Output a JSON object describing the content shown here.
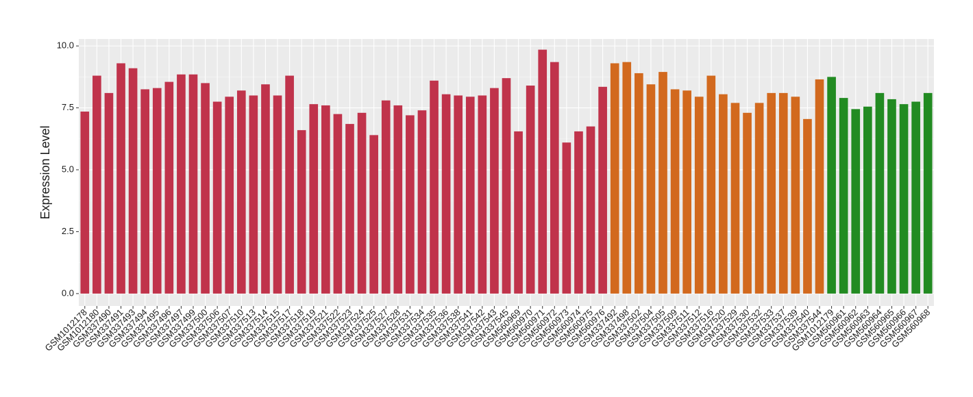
{
  "chart_data": {
    "type": "bar",
    "y_label": "Expression Level",
    "categories": [
      "GSM1012178",
      "GSM1012180",
      "GSM337490",
      "GSM337491",
      "GSM337493",
      "GSM337494",
      "GSM337495",
      "GSM337496",
      "GSM337497",
      "GSM337499",
      "GSM337500",
      "GSM337506",
      "GSM337507",
      "GSM337510",
      "GSM337513",
      "GSM337514",
      "GSM337515",
      "GSM337517",
      "GSM337518",
      "GSM337519",
      "GSM337521",
      "GSM337522",
      "GSM337523",
      "GSM337524",
      "GSM337525",
      "GSM337527",
      "GSM337528",
      "GSM337531",
      "GSM337534",
      "GSM337535",
      "GSM337536",
      "GSM337538",
      "GSM337541",
      "GSM337542",
      "GSM337543",
      "GSM337545",
      "GSM560969",
      "GSM560970",
      "GSM560971",
      "GSM560972",
      "GSM560973",
      "GSM560974",
      "GSM560975",
      "GSM560976",
      "GSM337492",
      "GSM337498",
      "GSM337502",
      "GSM337504",
      "GSM337505",
      "GSM337509",
      "GSM337511",
      "GSM337512",
      "GSM337516",
      "GSM337520",
      "GSM337529",
      "GSM337530",
      "GSM337532",
      "GSM337533",
      "GSM337537",
      "GSM337539",
      "GSM337540",
      "GSM337544",
      "GSM1012179",
      "GSM560961",
      "GSM560962",
      "GSM560963",
      "GSM560964",
      "GSM560965",
      "GSM560966",
      "GSM560967",
      "GSM560968"
    ],
    "values": [
      7.35,
      8.8,
      8.1,
      9.3,
      9.1,
      8.25,
      8.3,
      8.55,
      8.85,
      8.85,
      8.5,
      7.75,
      7.95,
      8.2,
      8.0,
      8.45,
      8.0,
      8.8,
      6.6,
      7.65,
      7.6,
      7.25,
      6.85,
      7.3,
      6.4,
      7.8,
      7.6,
      7.2,
      7.4,
      8.6,
      8.05,
      8.0,
      7.95,
      8.0,
      8.3,
      8.7,
      6.55,
      8.4,
      9.85,
      9.35,
      6.1,
      6.55,
      6.75,
      8.35,
      9.3,
      9.35,
      8.9,
      8.45,
      8.95,
      8.25,
      8.2,
      7.95,
      8.8,
      8.05,
      7.7,
      7.3,
      7.7,
      8.1,
      8.1,
      7.95,
      7.05,
      8.65,
      8.75,
      7.9,
      7.45,
      7.55,
      8.1,
      7.85,
      7.65,
      7.75,
      8.1
    ],
    "colors": [
      "#c0334b",
      "#c0334b",
      "#c0334b",
      "#c0334b",
      "#c0334b",
      "#c0334b",
      "#c0334b",
      "#c0334b",
      "#c0334b",
      "#c0334b",
      "#c0334b",
      "#c0334b",
      "#c0334b",
      "#c0334b",
      "#c0334b",
      "#c0334b",
      "#c0334b",
      "#c0334b",
      "#c0334b",
      "#c0334b",
      "#c0334b",
      "#c0334b",
      "#c0334b",
      "#c0334b",
      "#c0334b",
      "#c0334b",
      "#c0334b",
      "#c0334b",
      "#c0334b",
      "#c0334b",
      "#c0334b",
      "#c0334b",
      "#c0334b",
      "#c0334b",
      "#c0334b",
      "#c0334b",
      "#c0334b",
      "#c0334b",
      "#c0334b",
      "#c0334b",
      "#c0334b",
      "#c0334b",
      "#c0334b",
      "#c0334b",
      "#d2691e",
      "#d2691e",
      "#d2691e",
      "#d2691e",
      "#d2691e",
      "#d2691e",
      "#d2691e",
      "#d2691e",
      "#d2691e",
      "#d2691e",
      "#d2691e",
      "#d2691e",
      "#d2691e",
      "#d2691e",
      "#d2691e",
      "#d2691e",
      "#d2691e",
      "#d2691e",
      "#228b22",
      "#228b22",
      "#228b22",
      "#228b22",
      "#228b22",
      "#228b22",
      "#228b22",
      "#228b22",
      "#228b22"
    ],
    "ylim": [
      -0.5,
      10.28
    ],
    "yticks": [
      {
        "value": 0,
        "label": "0.0"
      },
      {
        "value": 2.5,
        "label": "2.5"
      },
      {
        "value": 5,
        "label": "5.0"
      },
      {
        "value": 7.5,
        "label": "7.5"
      },
      {
        "value": 10,
        "label": "10.0"
      }
    ],
    "grid": true
  }
}
